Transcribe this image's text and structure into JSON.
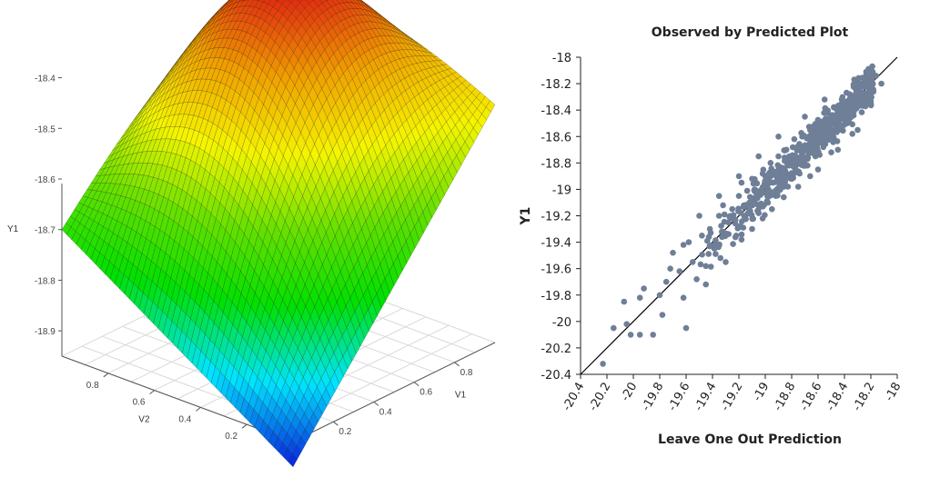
{
  "chart_data": [
    {
      "type": "surface",
      "zlabel": "Y1",
      "xlabel": "V1",
      "ylabel": "V2",
      "zticks": [
        "-18.4",
        "-18.5",
        "-18.6",
        "-18.7",
        "-18.8",
        "-18.9"
      ],
      "zlim": [
        -18.95,
        -18.25
      ],
      "xticks": [
        "0.2",
        "0.4",
        "0.6",
        "0.8"
      ],
      "yticks": [
        "0.2",
        "0.4",
        "0.6",
        "0.8"
      ],
      "surface": {
        "peak_z": -18.26,
        "corner_low_z": -19.0,
        "corner_left_z": -18.7,
        "corner_right_z": -18.48,
        "colormap": [
          "#0a1fd9",
          "#00e5ff",
          "#00e000",
          "#66e000",
          "#f5f500",
          "#f0a000",
          "#e01e10"
        ]
      },
      "grid": true
    },
    {
      "type": "scatter",
      "title": "Observed by Predicted Plot",
      "xlabel": "Leave One Out Prediction",
      "ylabel": "Y1",
      "xlim": [
        -20.4,
        -18.0
      ],
      "ylim": [
        -20.4,
        -18.0
      ],
      "xticks": [
        "-20.4",
        "-20.2",
        "-20",
        "-19.8",
        "-19.6",
        "-19.4",
        "-19.2",
        "-19",
        "-18.8",
        "-18.6",
        "-18.4",
        "-18.2",
        "-18"
      ],
      "yticks": [
        "-18",
        "-18.2",
        "-18.4",
        "-18.6",
        "-18.8",
        "-19",
        "-19.2",
        "-19.4",
        "-19.6",
        "-19.8",
        "-20",
        "-20.2",
        "-20.4"
      ],
      "point_color": "#6e7f97",
      "line_color": "#000000",
      "reference_line": {
        "from": [
          -20.4,
          -20.4
        ],
        "to": [
          -18.0,
          -18.0
        ]
      },
      "points": [
        [
          -20.23,
          -20.32
        ],
        [
          -20.15,
          -20.05
        ],
        [
          -20.05,
          -20.02
        ],
        [
          -20.02,
          -20.1
        ],
        [
          -20.07,
          -19.85
        ],
        [
          -19.95,
          -20.1
        ],
        [
          -19.85,
          -20.1
        ],
        [
          -19.92,
          -19.75
        ],
        [
          -19.95,
          -19.82
        ],
        [
          -19.8,
          -19.8
        ],
        [
          -19.75,
          -19.7
        ],
        [
          -19.72,
          -19.6
        ],
        [
          -19.65,
          -19.62
        ],
        [
          -19.7,
          -19.48
        ],
        [
          -19.62,
          -19.42
        ],
        [
          -19.55,
          -19.55
        ],
        [
          -19.52,
          -19.68
        ],
        [
          -19.6,
          -20.05
        ],
        [
          -19.45,
          -19.72
        ],
        [
          -19.48,
          -19.35
        ],
        [
          -19.42,
          -19.3
        ],
        [
          -19.38,
          -19.42
        ],
        [
          -19.35,
          -19.2
        ],
        [
          -19.3,
          -19.55
        ],
        [
          -19.32,
          -19.12
        ],
        [
          -19.28,
          -19.25
        ],
        [
          -19.25,
          -19.15
        ],
        [
          -19.22,
          -19.35
        ],
        [
          -19.2,
          -19.05
        ],
        [
          -19.18,
          -18.95
        ],
        [
          -19.15,
          -19.22
        ],
        [
          -19.12,
          -19.1
        ],
        [
          -19.1,
          -18.92
        ],
        [
          -19.08,
          -19.0
        ],
        [
          -19.05,
          -19.18
        ],
        [
          -19.02,
          -18.88
        ],
        [
          -19.0,
          -18.98
        ],
        [
          -18.98,
          -19.1
        ],
        [
          -18.96,
          -18.8
        ],
        [
          -18.94,
          -18.95
        ],
        [
          -18.92,
          -19.05
        ],
        [
          -18.9,
          -18.75
        ],
        [
          -18.88,
          -18.85
        ],
        [
          -18.86,
          -18.98
        ],
        [
          -18.84,
          -18.7
        ],
        [
          -18.82,
          -18.82
        ],
        [
          -18.8,
          -18.92
        ],
        [
          -18.78,
          -18.62
        ],
        [
          -18.76,
          -18.76
        ],
        [
          -18.74,
          -18.88
        ],
        [
          -18.72,
          -18.6
        ],
        [
          -18.7,
          -18.7
        ],
        [
          -18.68,
          -18.82
        ],
        [
          -18.66,
          -18.55
        ],
        [
          -18.64,
          -18.65
        ],
        [
          -18.62,
          -18.75
        ],
        [
          -18.6,
          -18.48
        ],
        [
          -18.58,
          -18.6
        ],
        [
          -18.56,
          -18.68
        ],
        [
          -18.54,
          -18.42
        ],
        [
          -18.52,
          -18.52
        ],
        [
          -18.5,
          -18.62
        ],
        [
          -18.48,
          -18.38
        ],
        [
          -18.46,
          -18.48
        ],
        [
          -18.44,
          -18.55
        ],
        [
          -18.42,
          -18.32
        ],
        [
          -18.4,
          -18.44
        ],
        [
          -18.38,
          -18.5
        ],
        [
          -18.36,
          -18.28
        ],
        [
          -18.34,
          -18.4
        ],
        [
          -18.32,
          -18.36
        ],
        [
          -18.3,
          -18.25
        ],
        [
          -18.28,
          -18.35
        ],
        [
          -18.26,
          -18.3
        ],
        [
          -18.24,
          -18.2
        ],
        [
          -18.22,
          -18.28
        ],
        [
          -18.2,
          -18.22
        ],
        [
          -18.18,
          -18.26
        ],
        [
          -18.34,
          -18.58
        ],
        [
          -18.5,
          -18.72
        ],
        [
          -18.66,
          -18.9
        ],
        [
          -18.86,
          -19.06
        ],
        [
          -19.02,
          -19.22
        ],
        [
          -19.18,
          -19.38
        ],
        [
          -19.34,
          -19.52
        ],
        [
          -18.9,
          -18.6
        ],
        [
          -18.7,
          -18.45
        ],
        [
          -18.55,
          -18.32
        ],
        [
          -19.05,
          -18.75
        ],
        [
          -19.2,
          -18.9
        ],
        [
          -19.35,
          -19.05
        ],
        [
          -19.5,
          -19.2
        ],
        [
          -19.1,
          -19.3
        ],
        [
          -18.95,
          -19.15
        ],
        [
          -18.75,
          -18.98
        ],
        [
          -18.6,
          -18.85
        ],
        [
          -18.45,
          -18.7
        ],
        [
          -18.3,
          -18.55
        ],
        [
          -19.62,
          -19.82
        ],
        [
          -19.78,
          -19.95
        ],
        [
          -19.45,
          -19.58
        ],
        [
          -19.58,
          -19.4
        ],
        [
          -18.12,
          -18.2
        ],
        [
          -18.16,
          -18.14
        ],
        [
          -18.24,
          -18.16
        ]
      ]
    }
  ]
}
